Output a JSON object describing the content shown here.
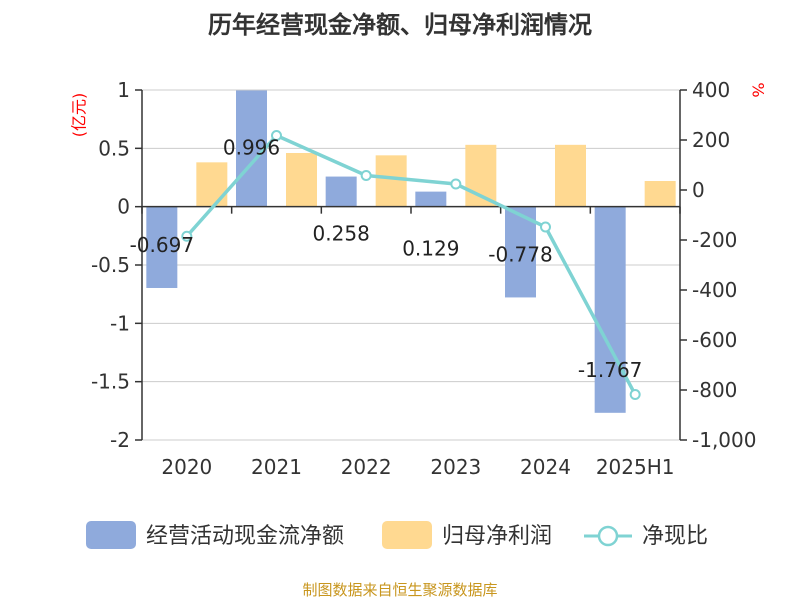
{
  "chart_data": {
    "type": "bar",
    "title": "历年经营现金净额、归母净利润情况",
    "categories": [
      "2020",
      "2021",
      "2022",
      "2023",
      "2024",
      "2025H1"
    ],
    "left_axis": {
      "unit_label": "(亿元)",
      "ylim": [
        -2,
        1
      ],
      "ticks": [
        1,
        0.5,
        0,
        -0.5,
        -1,
        -1.5,
        -2
      ],
      "tick_labels": [
        "1",
        "0.5",
        "0",
        "-0.5",
        "-1",
        "-1.5",
        "-2"
      ]
    },
    "right_axis": {
      "unit_label": "%",
      "ylim": [
        -1000,
        400
      ],
      "ticks": [
        400,
        200,
        0,
        -200,
        -400,
        -600,
        -800,
        -1000
      ],
      "tick_labels": [
        "400",
        "200",
        "0",
        "-200",
        "-400",
        "-600",
        "-800",
        "-1,000"
      ]
    },
    "series": [
      {
        "name": "经营活动现金流净额",
        "kind": "bar",
        "axis": "left",
        "color": "#8faadc",
        "values": [
          -0.697,
          0.996,
          0.258,
          0.129,
          -0.778,
          -1.767
        ],
        "data_labels": [
          "-0.697",
          "0.996",
          "0.258",
          "0.129",
          "-0.778",
          "-1.767"
        ]
      },
      {
        "name": "归母净利润",
        "kind": "bar",
        "axis": "left",
        "color": "#ffd991",
        "values": [
          0.38,
          0.46,
          0.44,
          0.53,
          0.53,
          0.22
        ]
      },
      {
        "name": "净现比",
        "kind": "line",
        "axis": "right",
        "color": "#7fd3d3",
        "values": [
          -185,
          218,
          58,
          24,
          -148,
          -818
        ]
      }
    ],
    "grid": true,
    "legend_position": "bottom"
  },
  "source": "制图数据来自恒生聚源数据库"
}
